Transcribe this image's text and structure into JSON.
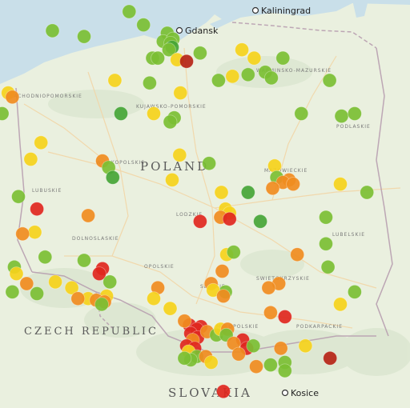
{
  "labels": {
    "country_main": "POLAND",
    "country_sw": "CZECH REPUBLIC",
    "country_s": "SLOVAKIA"
  },
  "cities": {
    "north_city": "Gdansk",
    "ne_city": "Kaliningrad",
    "south_city": "Kosice"
  },
  "colors": {
    "sea": "#c9dfe9",
    "land": "#eaf0df",
    "hill": "#dbe6cf",
    "road": "#f2d6a7",
    "border": "#b89fb0",
    "green": "#7bbf33",
    "dark_green": "#45a536",
    "yellow": "#f5d21b",
    "orange": "#f08c1f",
    "red": "#e0271e",
    "dark_red": "#b52416"
  },
  "markers": [
    {
      "c": "green",
      "lat": 54.78,
      "lon": 17.55
    },
    {
      "c": "green",
      "lat": 54.62,
      "lon": 17.9
    },
    {
      "c": "green",
      "lat": 54.48,
      "lon": 16.45
    },
    {
      "c": "green",
      "lat": 54.55,
      "lon": 15.68
    },
    {
      "c": "green",
      "lat": 54.52,
      "lon": 18.48
    },
    {
      "c": "green",
      "lat": 54.42,
      "lon": 18.38
    },
    {
      "c": "green",
      "lat": 54.45,
      "lon": 18.62
    },
    {
      "c": "green",
      "lat": 54.4,
      "lon": 18.56
    },
    {
      "c": "dark_green",
      "lat": 54.35,
      "lon": 18.6
    },
    {
      "c": "green",
      "lat": 54.32,
      "lon": 18.52
    },
    {
      "c": "green",
      "lat": 54.22,
      "lon": 18.12
    },
    {
      "c": "green",
      "lat": 54.22,
      "lon": 18.25
    },
    {
      "c": "yellow",
      "lat": 54.2,
      "lon": 18.72
    },
    {
      "c": "dark_red",
      "lat": 54.18,
      "lon": 18.95
    },
    {
      "c": "green",
      "lat": 54.28,
      "lon": 19.28
    },
    {
      "c": "yellow",
      "lat": 54.32,
      "lon": 20.3
    },
    {
      "c": "yellow",
      "lat": 54.22,
      "lon": 20.6
    },
    {
      "c": "green",
      "lat": 54.22,
      "lon": 21.3
    },
    {
      "c": "green",
      "lat": 54.02,
      "lon": 20.45
    },
    {
      "c": "yellow",
      "lat": 54.0,
      "lon": 20.07
    },
    {
      "c": "green",
      "lat": 53.95,
      "lon": 19.73
    },
    {
      "c": "green",
      "lat": 54.05,
      "lon": 20.87
    },
    {
      "c": "green",
      "lat": 53.98,
      "lon": 21.02
    },
    {
      "c": "green",
      "lat": 53.95,
      "lon": 22.44
    },
    {
      "c": "yellow",
      "lat": 53.95,
      "lon": 17.2
    },
    {
      "c": "green",
      "lat": 53.92,
      "lon": 18.05
    },
    {
      "c": "yellow",
      "lat": 53.8,
      "lon": 14.6
    },
    {
      "c": "orange",
      "lat": 53.75,
      "lon": 14.7
    },
    {
      "c": "green",
      "lat": 53.55,
      "lon": 14.45
    },
    {
      "c": "yellow",
      "lat": 53.8,
      "lon": 18.8
    },
    {
      "c": "dark_green",
      "lat": 53.55,
      "lon": 17.35
    },
    {
      "c": "yellow",
      "lat": 53.55,
      "lon": 18.15
    },
    {
      "c": "green",
      "lat": 53.5,
      "lon": 18.65
    },
    {
      "c": "green",
      "lat": 53.45,
      "lon": 18.55
    },
    {
      "c": "green",
      "lat": 53.55,
      "lon": 21.75
    },
    {
      "c": "green",
      "lat": 53.52,
      "lon": 22.73
    },
    {
      "c": "green",
      "lat": 53.55,
      "lon": 23.05
    },
    {
      "c": "yellow",
      "lat": 53.2,
      "lon": 15.4
    },
    {
      "c": "yellow",
      "lat": 53.05,
      "lon": 18.78
    },
    {
      "c": "green",
      "lat": 52.95,
      "lon": 19.5
    },
    {
      "c": "yellow",
      "lat": 53.0,
      "lon": 15.15
    },
    {
      "c": "orange",
      "lat": 52.98,
      "lon": 16.9
    },
    {
      "c": "green",
      "lat": 52.9,
      "lon": 17.05
    },
    {
      "c": "dark_green",
      "lat": 52.78,
      "lon": 17.15
    },
    {
      "c": "yellow",
      "lat": 52.75,
      "lon": 18.6
    },
    {
      "c": "yellow",
      "lat": 52.92,
      "lon": 21.1
    },
    {
      "c": "green",
      "lat": 52.78,
      "lon": 21.15
    },
    {
      "c": "orange",
      "lat": 52.75,
      "lon": 21.45
    },
    {
      "c": "orange",
      "lat": 52.72,
      "lon": 21.3
    },
    {
      "c": "orange",
      "lat": 52.7,
      "lon": 21.55
    },
    {
      "c": "orange",
      "lat": 52.65,
      "lon": 21.05
    },
    {
      "c": "dark_green",
      "lat": 52.6,
      "lon": 20.45
    },
    {
      "c": "yellow",
      "lat": 52.7,
      "lon": 22.7
    },
    {
      "c": "green",
      "lat": 52.6,
      "lon": 23.35
    },
    {
      "c": "green",
      "lat": 52.55,
      "lon": 14.85
    },
    {
      "c": "red",
      "lat": 52.4,
      "lon": 15.3
    },
    {
      "c": "yellow",
      "lat": 52.6,
      "lon": 19.8
    },
    {
      "c": "yellow",
      "lat": 52.4,
      "lon": 19.9
    },
    {
      "c": "yellow",
      "lat": 52.35,
      "lon": 20.0
    },
    {
      "c": "orange",
      "lat": 52.3,
      "lon": 19.78
    },
    {
      "c": "red",
      "lat": 52.28,
      "lon": 20.0
    },
    {
      "c": "red",
      "lat": 52.25,
      "lon": 19.28
    },
    {
      "c": "orange",
      "lat": 52.32,
      "lon": 16.55
    },
    {
      "c": "dark_green",
      "lat": 52.25,
      "lon": 20.75
    },
    {
      "c": "green",
      "lat": 52.3,
      "lon": 22.35
    },
    {
      "c": "yellow",
      "lat": 52.12,
      "lon": 15.25
    },
    {
      "c": "orange",
      "lat": 52.1,
      "lon": 14.95
    },
    {
      "c": "yellow",
      "lat": 51.85,
      "lon": 19.93
    },
    {
      "c": "green",
      "lat": 51.88,
      "lon": 20.1
    },
    {
      "c": "green",
      "lat": 51.98,
      "lon": 22.35
    },
    {
      "c": "orange",
      "lat": 51.85,
      "lon": 21.65
    },
    {
      "c": "green",
      "lat": 51.82,
      "lon": 15.5
    },
    {
      "c": "green",
      "lat": 51.78,
      "lon": 16.45
    },
    {
      "c": "green",
      "lat": 51.7,
      "lon": 14.75
    },
    {
      "c": "yellow",
      "lat": 51.62,
      "lon": 14.8
    },
    {
      "c": "orange",
      "lat": 51.5,
      "lon": 15.05
    },
    {
      "c": "yellow",
      "lat": 51.52,
      "lon": 15.75
    },
    {
      "c": "red",
      "lat": 51.68,
      "lon": 16.9
    },
    {
      "c": "red",
      "lat": 51.62,
      "lon": 16.82
    },
    {
      "c": "green",
      "lat": 51.52,
      "lon": 17.08
    },
    {
      "c": "orange",
      "lat": 51.65,
      "lon": 19.82
    },
    {
      "c": "orange",
      "lat": 51.5,
      "lon": 19.55
    },
    {
      "c": "orange",
      "lat": 51.45,
      "lon": 18.25
    },
    {
      "c": "green",
      "lat": 51.7,
      "lon": 22.4
    },
    {
      "c": "green",
      "lat": 51.4,
      "lon": 23.05
    },
    {
      "c": "orange",
      "lat": 51.5,
      "lon": 21.2
    },
    {
      "c": "orange",
      "lat": 51.45,
      "lon": 20.95
    },
    {
      "c": "yellow",
      "lat": 51.45,
      "lon": 16.15
    },
    {
      "c": "green",
      "lat": 51.4,
      "lon": 14.7
    },
    {
      "c": "green",
      "lat": 51.38,
      "lon": 15.3
    },
    {
      "c": "yellow",
      "lat": 51.32,
      "lon": 16.55
    },
    {
      "c": "orange",
      "lat": 51.32,
      "lon": 16.3
    },
    {
      "c": "yellow",
      "lat": 51.35,
      "lon": 17.0
    },
    {
      "c": "orange",
      "lat": 51.3,
      "lon": 16.75
    },
    {
      "c": "orange",
      "lat": 51.28,
      "lon": 16.95
    },
    {
      "c": "green",
      "lat": 51.25,
      "lon": 16.88
    },
    {
      "c": "yellow",
      "lat": 51.32,
      "lon": 18.15
    },
    {
      "c": "yellow",
      "lat": 51.2,
      "lon": 18.55
    },
    {
      "c": "green",
      "lat": 51.4,
      "lon": 19.9
    },
    {
      "c": "yellow",
      "lat": 51.42,
      "lon": 19.6
    },
    {
      "c": "orange",
      "lat": 51.35,
      "lon": 19.85
    },
    {
      "c": "yellow",
      "lat": 51.25,
      "lon": 22.7
    },
    {
      "c": "orange",
      "lat": 51.15,
      "lon": 21.0
    },
    {
      "c": "red",
      "lat": 51.1,
      "lon": 21.35
    },
    {
      "c": "red",
      "lat": 51.0,
      "lon": 19.02
    },
    {
      "c": "orange",
      "lat": 51.05,
      "lon": 18.9
    },
    {
      "c": "red",
      "lat": 50.98,
      "lon": 19.3
    },
    {
      "c": "red",
      "lat": 50.95,
      "lon": 19.2
    },
    {
      "c": "red",
      "lat": 50.9,
      "lon": 19.05
    },
    {
      "c": "red",
      "lat": 50.85,
      "lon": 19.22
    },
    {
      "c": "orange",
      "lat": 50.92,
      "lon": 19.45
    },
    {
      "c": "green",
      "lat": 50.88,
      "lon": 19.68
    },
    {
      "c": "yellow",
      "lat": 50.95,
      "lon": 19.78
    },
    {
      "c": "orange",
      "lat": 50.95,
      "lon": 19.95
    },
    {
      "c": "green",
      "lat": 50.88,
      "lon": 19.92
    },
    {
      "c": "orange",
      "lat": 50.82,
      "lon": 19.1
    },
    {
      "c": "red",
      "lat": 50.75,
      "lon": 18.95
    },
    {
      "c": "red",
      "lat": 50.72,
      "lon": 19.15
    },
    {
      "c": "yellow",
      "lat": 50.68,
      "lon": 19.0
    },
    {
      "c": "green",
      "lat": 50.62,
      "lon": 19.2
    },
    {
      "c": "orange",
      "lat": 50.62,
      "lon": 19.42
    },
    {
      "c": "yellow",
      "lat": 50.55,
      "lon": 19.55
    },
    {
      "c": "green",
      "lat": 50.58,
      "lon": 19.05
    },
    {
      "c": "green",
      "lat": 50.6,
      "lon": 18.9
    },
    {
      "c": "red",
      "lat": 50.82,
      "lon": 20.32
    },
    {
      "c": "orange",
      "lat": 50.78,
      "lon": 20.1
    },
    {
      "c": "red",
      "lat": 50.72,
      "lon": 20.42
    },
    {
      "c": "green",
      "lat": 50.75,
      "lon": 20.58
    },
    {
      "c": "orange",
      "lat": 50.65,
      "lon": 20.22
    },
    {
      "c": "orange",
      "lat": 50.72,
      "lon": 21.25
    },
    {
      "c": "yellow",
      "lat": 50.75,
      "lon": 21.85
    },
    {
      "c": "dark_red",
      "lat": 50.6,
      "lon": 22.45
    },
    {
      "c": "orange",
      "lat": 50.5,
      "lon": 20.65
    },
    {
      "c": "green",
      "lat": 50.52,
      "lon": 21.0
    },
    {
      "c": "green",
      "lat": 50.55,
      "lon": 21.35
    },
    {
      "c": "green",
      "lat": 50.45,
      "lon": 21.35
    },
    {
      "c": "red",
      "lat": 50.2,
      "lon": 19.85
    }
  ]
}
